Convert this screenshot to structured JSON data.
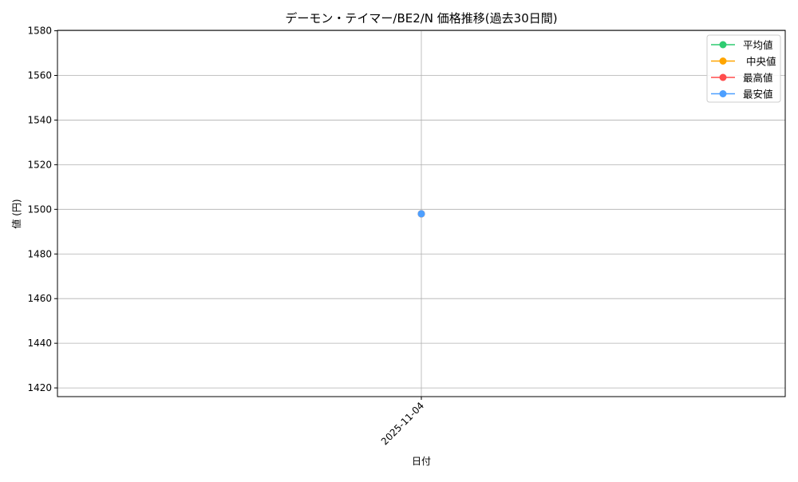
{
  "chart_data": {
    "type": "line",
    "title": "デーモン・テイマー/BE2/N 価格推移(過去30日間)",
    "xlabel": "日付",
    "ylabel": "値 (円)",
    "categories": [
      "2025-11-04"
    ],
    "series": [
      {
        "name": "平均値",
        "values": [
          1498
        ],
        "color": "#2ecc71"
      },
      {
        "name": " 中央値",
        "values": [
          1498
        ],
        "color": "#ffa500"
      },
      {
        "name": "最高値",
        "values": [
          1498
        ],
        "color": "#ff4d4d"
      },
      {
        "name": "最安値",
        "values": [
          1498
        ],
        "color": "#4d9fff"
      }
    ],
    "ylim": [
      1416.1,
      1580.2
    ],
    "yticks": [
      1420,
      1440,
      1460,
      1480,
      1500,
      1520,
      1540,
      1560,
      1580
    ],
    "grid": true,
    "legend_position": "top-right",
    "marker": "circle"
  }
}
